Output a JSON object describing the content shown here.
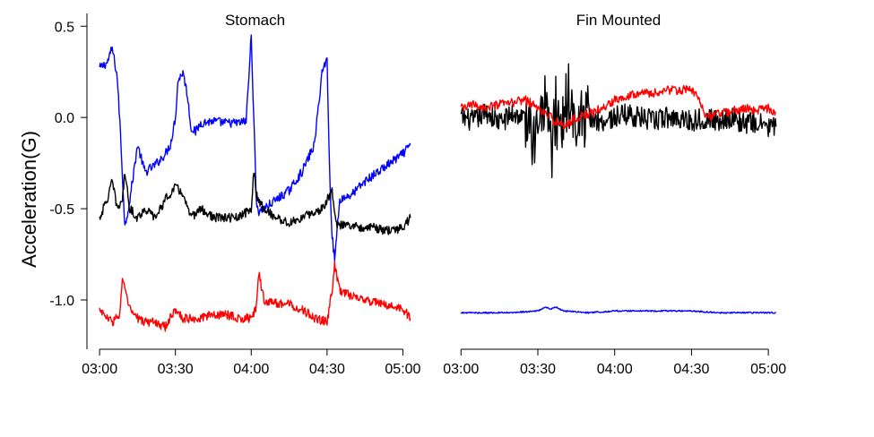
{
  "chart_data": [
    {
      "type": "line",
      "title": "Stomach",
      "ylabel": "Acceleration(G)",
      "xlabel": "",
      "x_unit": "time",
      "xlim": [
        "02:55",
        "05:08"
      ],
      "ylim": [
        -1.27,
        0.57
      ],
      "x_ticks": [
        "03:00",
        "03:30",
        "04:00",
        "04:30",
        "05:00"
      ],
      "y_ticks": [
        "0.5",
        "0.0",
        "-0.5",
        "-1.0"
      ],
      "y_tick_values": [
        0.5,
        0.0,
        -0.5,
        -1.0
      ],
      "grid": false,
      "legend": "none",
      "series": [
        {
          "color": "#0000ff",
          "x": [
            "03:00",
            "03:03",
            "03:05",
            "03:07",
            "03:08",
            "03:10",
            "03:12",
            "03:15",
            "03:18",
            "03:22",
            "03:26",
            "03:28",
            "03:30",
            "03:31",
            "03:33",
            "03:35",
            "03:36",
            "03:38",
            "03:40",
            "03:45",
            "03:50",
            "03:55",
            "03:58",
            "04:00",
            "04:01",
            "04:02",
            "04:03",
            "04:05",
            "04:10",
            "04:15",
            "04:20",
            "04:25",
            "04:28",
            "04:30",
            "04:31",
            "04:32",
            "04:33",
            "04:35",
            "04:40",
            "04:45",
            "04:50",
            "04:55",
            "05:00",
            "05:03"
          ],
          "y": [
            0.27,
            0.3,
            0.38,
            0.22,
            -0.02,
            -0.6,
            -0.45,
            -0.15,
            -0.3,
            -0.26,
            -0.2,
            -0.15,
            0.0,
            0.2,
            0.25,
            0.1,
            -0.05,
            -0.08,
            -0.03,
            -0.02,
            -0.03,
            -0.03,
            -0.02,
            0.45,
            0.0,
            -0.45,
            -0.52,
            -0.5,
            -0.45,
            -0.4,
            -0.3,
            -0.15,
            0.25,
            0.32,
            -0.3,
            -0.65,
            -0.78,
            -0.45,
            -0.42,
            -0.35,
            -0.3,
            -0.25,
            -0.2,
            -0.15
          ]
        },
        {
          "color": "#000000",
          "x": [
            "03:00",
            "03:03",
            "03:05",
            "03:07",
            "03:09",
            "03:10",
            "03:12",
            "03:15",
            "03:18",
            "03:22",
            "03:26",
            "03:30",
            "03:33",
            "03:36",
            "03:40",
            "03:45",
            "03:50",
            "03:55",
            "04:00",
            "04:01",
            "04:02",
            "04:03",
            "04:05",
            "04:10",
            "04:15",
            "04:20",
            "04:25",
            "04:28",
            "04:30",
            "04:32",
            "04:34",
            "04:38",
            "04:42",
            "04:48",
            "04:52",
            "04:56",
            "05:00",
            "05:03"
          ],
          "y": [
            -0.55,
            -0.45,
            -0.35,
            -0.5,
            -0.45,
            -0.3,
            -0.5,
            -0.55,
            -0.5,
            -0.55,
            -0.45,
            -0.38,
            -0.42,
            -0.55,
            -0.5,
            -0.55,
            -0.55,
            -0.55,
            -0.5,
            -0.3,
            -0.42,
            -0.45,
            -0.5,
            -0.55,
            -0.58,
            -0.55,
            -0.52,
            -0.5,
            -0.45,
            -0.4,
            -0.6,
            -0.58,
            -0.6,
            -0.6,
            -0.62,
            -0.62,
            -0.6,
            -0.55
          ]
        },
        {
          "color": "#ff0000",
          "x": [
            "03:00",
            "03:03",
            "03:05",
            "03:08",
            "03:09",
            "03:10",
            "03:12",
            "03:15",
            "03:18",
            "03:22",
            "03:26",
            "03:30",
            "03:33",
            "03:36",
            "03:40",
            "03:45",
            "03:50",
            "03:55",
            "04:00",
            "04:02",
            "04:03",
            "04:05",
            "04:10",
            "04:15",
            "04:20",
            "04:25",
            "04:30",
            "04:32",
            "04:33",
            "04:35",
            "04:40",
            "04:45",
            "04:50",
            "04:55",
            "05:00",
            "05:03"
          ],
          "y": [
            -1.05,
            -1.1,
            -1.12,
            -1.08,
            -0.88,
            -0.95,
            -1.05,
            -1.1,
            -1.12,
            -1.12,
            -1.15,
            -1.05,
            -1.1,
            -1.1,
            -1.1,
            -1.08,
            -1.08,
            -1.1,
            -1.1,
            -1.05,
            -0.85,
            -1.0,
            -1.02,
            -1.02,
            -1.05,
            -1.1,
            -1.12,
            -0.95,
            -0.8,
            -0.95,
            -0.98,
            -1.0,
            -1.02,
            -1.03,
            -1.05,
            -1.1
          ]
        }
      ]
    },
    {
      "type": "line",
      "title": "Fin Mounted",
      "ylabel": "",
      "xlabel": "",
      "x_unit": "time",
      "xlim": [
        "02:55",
        "05:08"
      ],
      "ylim": [
        -1.27,
        0.57
      ],
      "x_ticks": [
        "03:00",
        "03:30",
        "04:00",
        "04:30",
        "05:00"
      ],
      "grid": false,
      "legend": "none",
      "series": [
        {
          "color": "#000000",
          "x": [
            "03:00",
            "03:05",
            "03:10",
            "03:15",
            "03:20",
            "03:25",
            "03:30",
            "03:33",
            "03:35",
            "03:37",
            "03:40",
            "03:42",
            "03:45",
            "03:50",
            "03:55",
            "04:00",
            "04:05",
            "04:10",
            "04:15",
            "04:20",
            "04:25",
            "04:30",
            "04:35",
            "04:40",
            "04:45",
            "04:50",
            "04:55",
            "05:00",
            "05:03"
          ],
          "y": [
            0.0,
            -0.02,
            0.03,
            -0.03,
            0.02,
            0.0,
            -0.05,
            0.02,
            -0.2,
            0.05,
            0.0,
            0.1,
            -0.05,
            0.0,
            -0.02,
            0.0,
            0.02,
            0.0,
            -0.02,
            0.0,
            0.0,
            -0.02,
            0.0,
            -0.02,
            0.0,
            -0.03,
            -0.03,
            -0.05,
            -0.05
          ]
        },
        {
          "color": "#ff0000",
          "x": [
            "03:00",
            "03:05",
            "03:10",
            "03:15",
            "03:20",
            "03:25",
            "03:30",
            "03:35",
            "03:40",
            "03:45",
            "03:50",
            "03:55",
            "03:58",
            "04:00",
            "04:05",
            "04:10",
            "04:15",
            "04:20",
            "04:25",
            "04:30",
            "04:33",
            "04:36",
            "04:40",
            "04:45",
            "04:50",
            "04:55",
            "05:00",
            "05:03"
          ],
          "y": [
            0.05,
            0.07,
            0.05,
            0.07,
            0.08,
            0.1,
            0.05,
            0.0,
            -0.05,
            0.0,
            0.02,
            0.05,
            0.07,
            0.1,
            0.12,
            0.14,
            0.13,
            0.15,
            0.15,
            0.15,
            0.1,
            0.0,
            0.02,
            0.03,
            0.05,
            0.04,
            0.05,
            0.03
          ]
        },
        {
          "color": "#0000ff",
          "x": [
            "03:00",
            "03:10",
            "03:20",
            "03:30",
            "03:33",
            "03:35",
            "03:37",
            "03:40",
            "03:50",
            "04:00",
            "04:10",
            "04:20",
            "04:30",
            "04:40",
            "04:50",
            "05:00",
            "05:03"
          ],
          "y": [
            -1.07,
            -1.07,
            -1.07,
            -1.06,
            -1.04,
            -1.05,
            -1.04,
            -1.06,
            -1.07,
            -1.06,
            -1.06,
            -1.06,
            -1.06,
            -1.07,
            -1.07,
            -1.07,
            -1.07
          ]
        }
      ]
    }
  ]
}
